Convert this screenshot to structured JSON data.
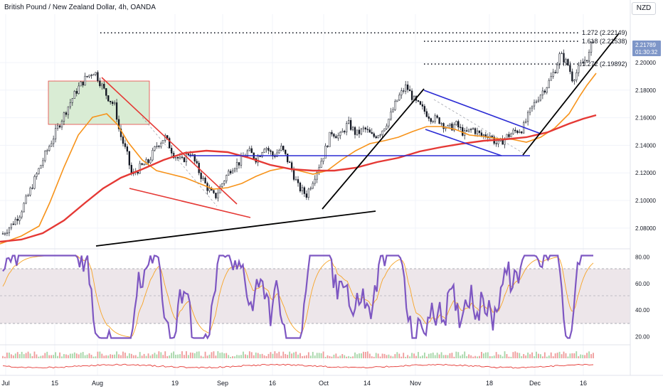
{
  "header": {
    "title": "British Pound / New Zealand Dollar, 4h, OANDA",
    "currency_button": "NZD"
  },
  "colors": {
    "candle": "#131722",
    "ema_fast": "#f7931a",
    "ema_slow": "#e53935",
    "rsi_line": "#7e57c2",
    "rsi_signal": "#f7a325",
    "rsi_band": "#ede6ea",
    "price_tag": "#7e96c8",
    "green_box": "#d8ecd2",
    "red_lines": "#e53935",
    "blue_lines": "#2b2bd4",
    "black_lines": "#000000"
  },
  "chart_data": {
    "type": "candlestick",
    "title": "British Pound / New Zealand Dollar, 4h, OANDA",
    "price_axis": {
      "ticks": [
        "2.20000",
        "2.18000",
        "2.16000",
        "2.14000",
        "2.12000",
        "2.10000",
        "2.08000"
      ],
      "ylim": [
        2.065,
        2.235
      ]
    },
    "time_axis": {
      "ticks": [
        "Jul",
        "15",
        "Aug",
        "19",
        "Sep",
        "16",
        "Oct",
        "14",
        "Nov",
        "18",
        "Dec",
        "16"
      ]
    },
    "last_price": {
      "value": "2.21789",
      "countdown": "01:30:32"
    },
    "fib_levels": [
      {
        "label": "1.272 (2.22149)",
        "value": 2.22149
      },
      {
        "label": "1.618 (2.21538)",
        "value": 2.21538
      },
      {
        "label": "1.272 (2.19892)",
        "value": 2.19892
      }
    ],
    "rsi_pane": {
      "ticks": [
        "80.00",
        "60.00",
        "40.00",
        "20.00"
      ],
      "band": [
        30,
        70
      ],
      "mid": 50,
      "ylim": [
        15,
        85
      ]
    },
    "price_path": [
      [
        0,
        2.076
      ],
      [
        2,
        2.082
      ],
      [
        4,
        2.09
      ],
      [
        6,
        2.103
      ],
      [
        8,
        2.118
      ],
      [
        10,
        2.132
      ],
      [
        12,
        2.145
      ],
      [
        14,
        2.158
      ],
      [
        16,
        2.17
      ],
      [
        18,
        2.181
      ],
      [
        20,
        2.189
      ],
      [
        22,
        2.194
      ],
      [
        23,
        2.188
      ],
      [
        25,
        2.176
      ],
      [
        27,
        2.168
      ],
      [
        28,
        2.15
      ],
      [
        30,
        2.132
      ],
      [
        31,
        2.118
      ],
      [
        33,
        2.124
      ],
      [
        35,
        2.128
      ],
      [
        37,
        2.14
      ],
      [
        39,
        2.146
      ],
      [
        41,
        2.134
      ],
      [
        43,
        2.128
      ],
      [
        45,
        2.136
      ],
      [
        47,
        2.122
      ],
      [
        49,
        2.11
      ],
      [
        51,
        2.102
      ],
      [
        53,
        2.114
      ],
      [
        55,
        2.124
      ],
      [
        57,
        2.128
      ],
      [
        59,
        2.136
      ],
      [
        61,
        2.13
      ],
      [
        63,
        2.14
      ],
      [
        65,
        2.132
      ],
      [
        67,
        2.138
      ],
      [
        69,
        2.126
      ],
      [
        71,
        2.11
      ],
      [
        73,
        2.104
      ],
      [
        75,
        2.118
      ],
      [
        77,
        2.132
      ],
      [
        79,
        2.15
      ],
      [
        81,
        2.146
      ],
      [
        83,
        2.156
      ],
      [
        85,
        2.148
      ],
      [
        87,
        2.152
      ],
      [
        89,
        2.146
      ],
      [
        91,
        2.15
      ],
      [
        93,
        2.16
      ],
      [
        95,
        2.174
      ],
      [
        97,
        2.183
      ],
      [
        99,
        2.172
      ],
      [
        101,
        2.166
      ],
      [
        103,
        2.16
      ],
      [
        105,
        2.158
      ],
      [
        107,
        2.152
      ],
      [
        109,
        2.155
      ],
      [
        111,
        2.148
      ],
      [
        113,
        2.152
      ],
      [
        115,
        2.147
      ],
      [
        117,
        2.148
      ],
      [
        119,
        2.14
      ],
      [
        121,
        2.146
      ],
      [
        123,
        2.15
      ],
      [
        125,
        2.152
      ],
      [
        127,
        2.166
      ],
      [
        129,
        2.176
      ],
      [
        131,
        2.184
      ],
      [
        133,
        2.196
      ],
      [
        134,
        2.206
      ],
      [
        136,
        2.198
      ],
      [
        137,
        2.188
      ],
      [
        139,
        2.198
      ],
      [
        141,
        2.206
      ],
      [
        142,
        2.218
      ]
    ]
  }
}
